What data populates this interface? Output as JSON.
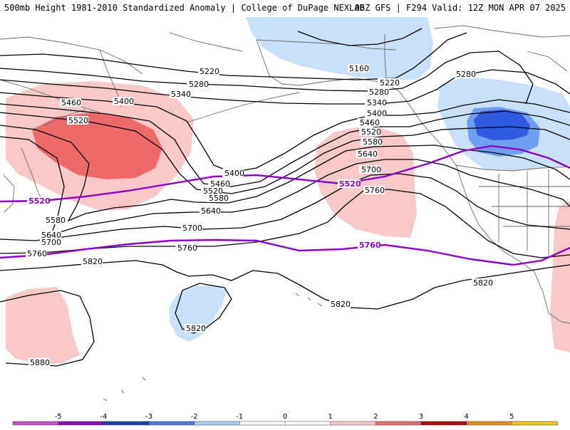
{
  "title_left": "500mb Height 1981-2010 Standardized Anomaly | College of DuPage NEXLAB",
  "title_right": "06Z GFS | F294 Valid: 12Z MON APR 07 2025",
  "colors": {
    "neg_light": "#c8e0f8",
    "neg_medium": "#6e9ff0",
    "neg_strong": "#2e5be0",
    "pos_light": "#f9c8c8",
    "pos_medium": "#ee6a6a",
    "contour": "#000000",
    "highlight_contour": "#8b00c8",
    "coast": "#6a6a6a"
  },
  "contour_labels": {
    "c5160": "5160",
    "c5220a": "5220",
    "c5220b": "5220",
    "c5280a": "5280",
    "c5280b": "5280",
    "c5280c": "5280",
    "c5340a": "5340",
    "c5340b": "5340",
    "c5400a": "5400",
    "c5400b": "5400",
    "c5400c": "5400",
    "c5460a": "5460",
    "c5460b": "5460",
    "c5460c": "5460",
    "c5520a": "5520",
    "c5520b": "5520",
    "c5520c": "5520",
    "c5520d": "5520",
    "c5580a": "5580",
    "c5580b": "5580",
    "c5580c": "5580",
    "c5640a": "5640",
    "c5640b": "5640",
    "c5640c": "5640",
    "c5700a": "5700",
    "c5700b": "5700",
    "c5700c": "5700",
    "c5760a": "5760",
    "c5760b": "5760",
    "c5760c": "5760",
    "c5760d": "5760",
    "c5820a": "5820",
    "c5820b": "5820",
    "c5820c": "5820",
    "c5820d": "5820",
    "c5880": "5880"
  },
  "colorbar": {
    "ticks": [
      "-5",
      "-4",
      "-3",
      "-2",
      "-1",
      "0",
      "1",
      "2",
      "3",
      "4",
      "5"
    ],
    "colors": [
      "#d24bd2",
      "#8a00c8",
      "#1640c0",
      "#4a78e6",
      "#a8cdf6",
      "#ffffff",
      "#ffffff",
      "#f9c8c8",
      "#ee6a6a",
      "#c00000",
      "#f08c00",
      "#f8c800"
    ]
  }
}
